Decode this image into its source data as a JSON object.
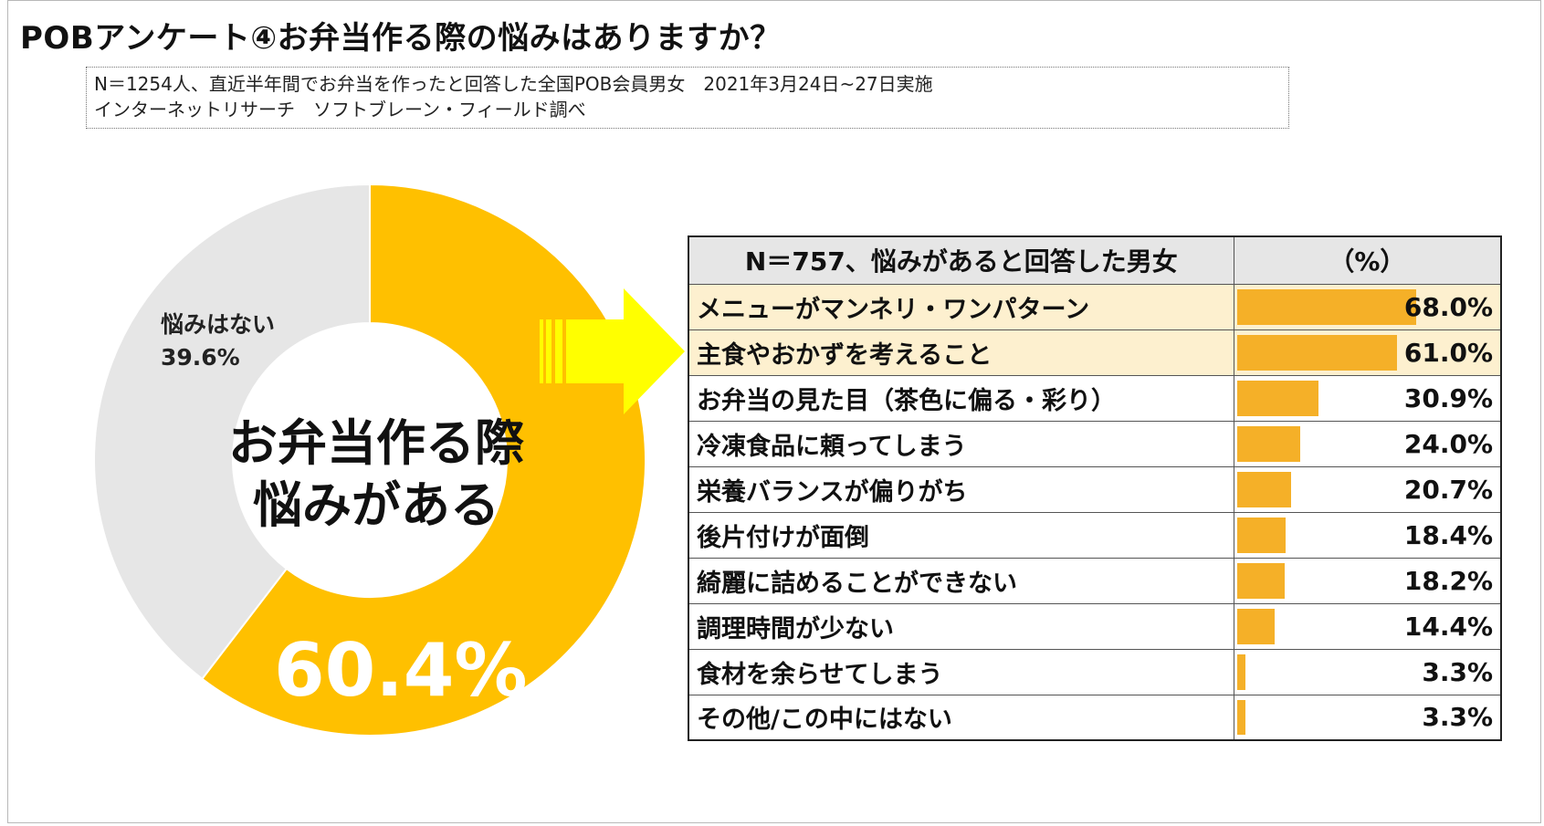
{
  "title": "POBアンケート④お弁当作る際の悩みはありますか？",
  "note": {
    "line1": "N＝1254人、直近半年間でお弁当を作ったと回答した全国POB会員男女　2021年3月24日~27日実施",
    "line2": "インターネットリサーチ　ソフトブレーン・フィールド調べ"
  },
  "colors": {
    "accent": "#FFC000",
    "other": "#E6E6E6",
    "bar": "#F5B028",
    "arrow": "#FFFF00",
    "highlight": "#FDF0CF"
  },
  "chart_data": [
    {
      "type": "pie",
      "slices": [
        {
          "label": "お弁当作る際悩みがある",
          "value": 60.4,
          "display": "60.4%"
        },
        {
          "label": "悩みはない",
          "value": 39.6,
          "display": "39.6%"
        }
      ],
      "center_text": [
        "お弁当作る際",
        "悩みがある"
      ],
      "other_label": "悩みはない"
    },
    {
      "type": "bar",
      "header_label": "N＝757、悩みがあると回答した男女",
      "header_unit": "（%）",
      "xlim": [
        0,
        100
      ],
      "rows": [
        {
          "label": "メニューがマンネリ・ワンパターン",
          "value": 68.0,
          "display": "68.0%",
          "highlight": true
        },
        {
          "label": "主食やおかずを考えること",
          "value": 61.0,
          "display": "61.0%",
          "highlight": true
        },
        {
          "label": "お弁当の見た目（茶色に偏る・彩り）",
          "value": 30.9,
          "display": "30.9%",
          "highlight": false
        },
        {
          "label": "冷凍食品に頼ってしまう",
          "value": 24.0,
          "display": "24.0%",
          "highlight": false
        },
        {
          "label": "栄養バランスが偏りがち",
          "value": 20.7,
          "display": "20.7%",
          "highlight": false
        },
        {
          "label": "後片付けが面倒",
          "value": 18.4,
          "display": "18.4%",
          "highlight": false
        },
        {
          "label": "綺麗に詰めることができない",
          "value": 18.2,
          "display": "18.2%",
          "highlight": false
        },
        {
          "label": "調理時間が少ない",
          "value": 14.4,
          "display": "14.4%",
          "highlight": false
        },
        {
          "label": "食材を余らせてしまう",
          "value": 3.3,
          "display": "3.3%",
          "highlight": false
        },
        {
          "label": "その他/この中にはない",
          "value": 3.3,
          "display": "3.3%",
          "highlight": false
        }
      ]
    }
  ]
}
